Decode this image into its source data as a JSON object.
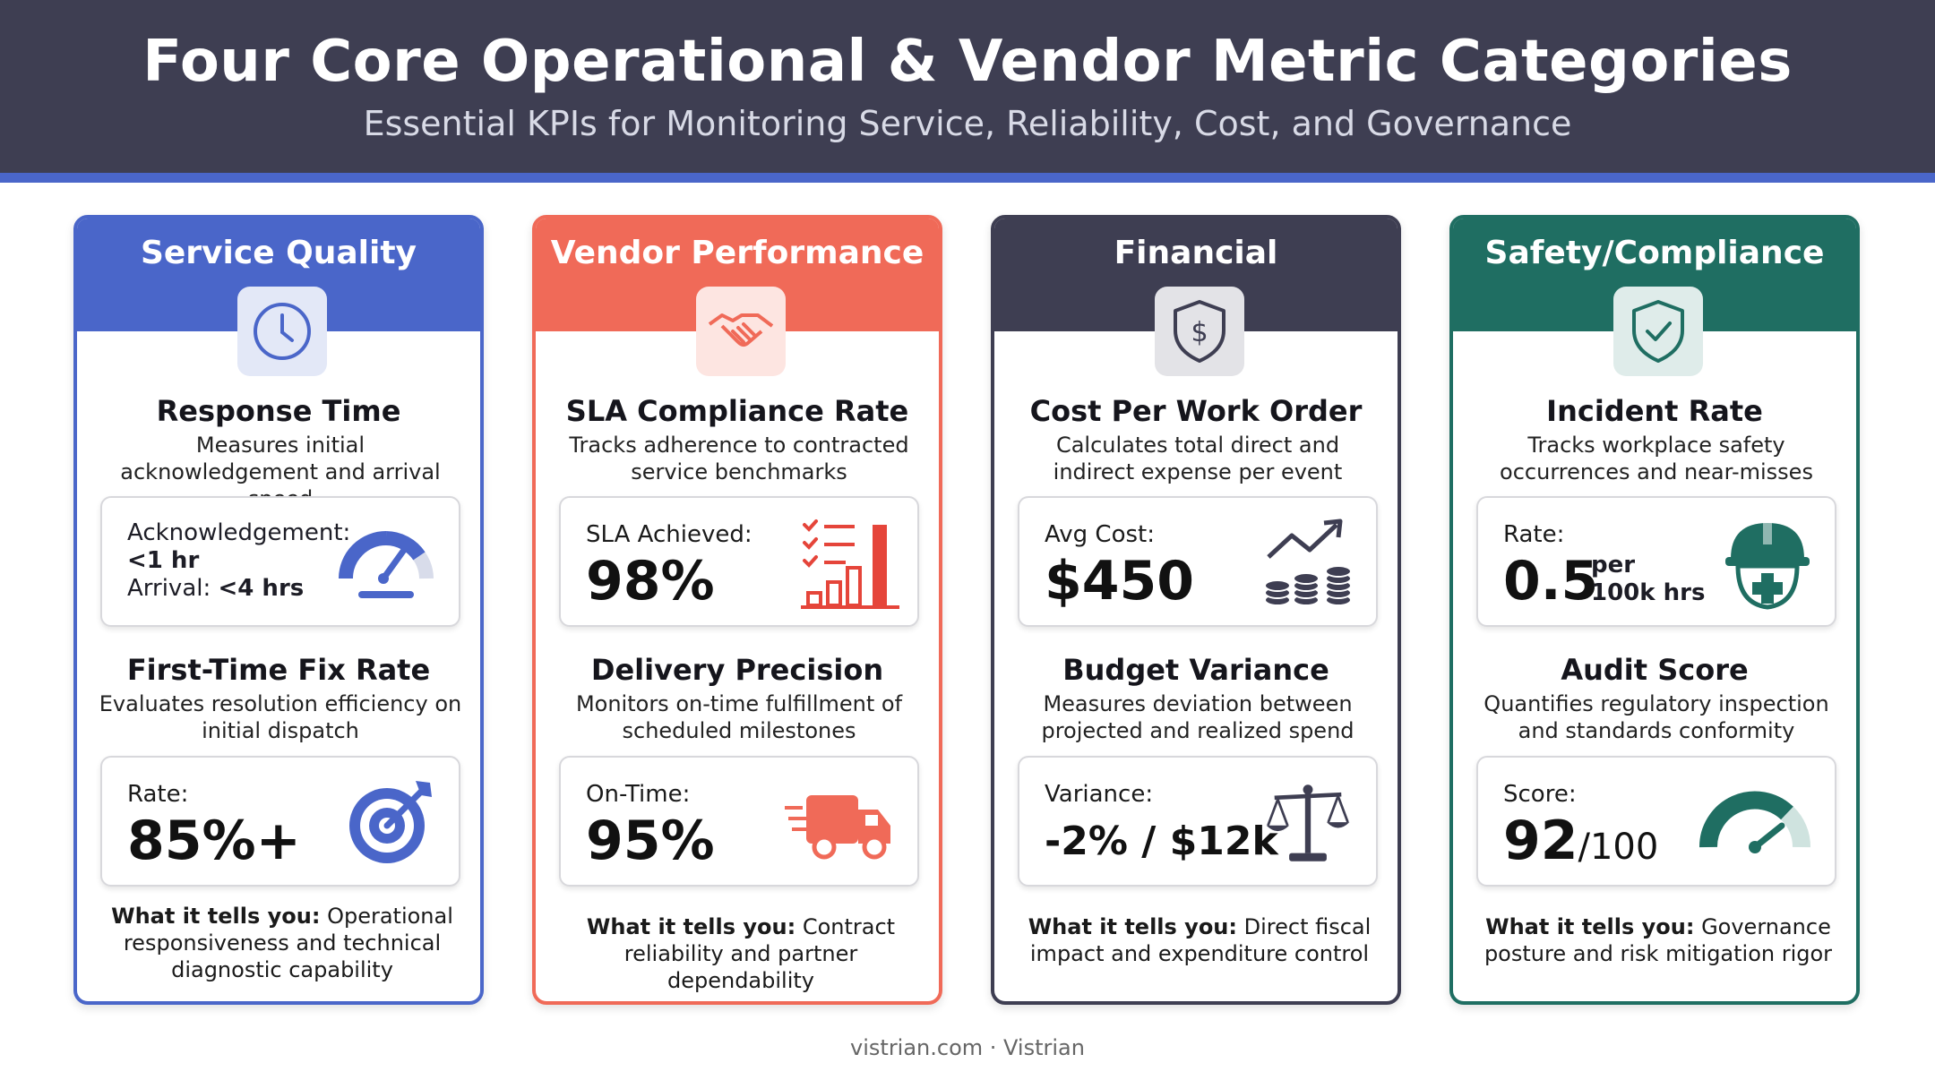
{
  "header": {
    "title": "Four Core Operational & Vendor Metric Categories",
    "subtitle": "Essential KPIs for Monitoring Service, Reliability, Cost, and Governance"
  },
  "colors": {
    "service": "#4a66c9",
    "vendor": "#f06a58",
    "financial": "#3e3e52",
    "safety": "#1f6e62"
  },
  "cards": [
    {
      "title": "Service Quality",
      "icon": "clock-icon",
      "m1": {
        "name": "Response Time",
        "desc": "Measures initial acknowledgement and arrival speed",
        "label1": "Acknowledgement:",
        "val1": "<1 hr",
        "label2": "Arrival:",
        "val2": "<4 hrs"
      },
      "m2": {
        "name": "First-Time Fix Rate",
        "desc": "Evaluates resolution efficiency on initial dispatch",
        "label": "Rate:",
        "value": "85%+"
      },
      "tells_label": "What it tells you:",
      "tells": "Operational responsiveness and technical diagnostic capability"
    },
    {
      "title": "Vendor Performance",
      "icon": "handshake-icon",
      "m1": {
        "name": "SLA Compliance Rate",
        "desc": "Tracks adherence to contracted service benchmarks",
        "label": "SLA Achieved:",
        "value": "98%"
      },
      "m2": {
        "name": "Delivery Precision",
        "desc": "Monitors on-time fulfillment of scheduled milestones",
        "label": "On-Time:",
        "value": "95%"
      },
      "tells_label": "What it tells you:",
      "tells": "Contract reliability and partner dependability"
    },
    {
      "title": "Financial",
      "icon": "dollar-shield-icon",
      "m1": {
        "name": "Cost Per Work Order",
        "desc": "Calculates total direct and indirect expense per event",
        "label": "Avg Cost:",
        "value": "$450"
      },
      "m2": {
        "name": "Budget Variance",
        "desc": "Measures deviation between projected and realized spend",
        "label": "Variance:",
        "value": "-2% / $12k"
      },
      "tells_label": "What it tells you:",
      "tells": "Direct fiscal impact and expenditure control"
    },
    {
      "title": "Safety/Compliance",
      "icon": "check-shield-icon",
      "m1": {
        "name": "Incident Rate",
        "desc": "Tracks workplace safety occurrences and near-misses",
        "label": "Rate:",
        "value": "0.5",
        "unit1": "per",
        "unit2": "100k hrs"
      },
      "m2": {
        "name": "Audit Score",
        "desc": "Quantifies regulatory inspection and standards conformity",
        "label": "Score:",
        "value": "92",
        "unit": "/100"
      },
      "tells_label": "What it tells you:",
      "tells": "Governance posture and risk mitigation rigor"
    }
  ],
  "footer": "vistrian.com · Vistrian"
}
